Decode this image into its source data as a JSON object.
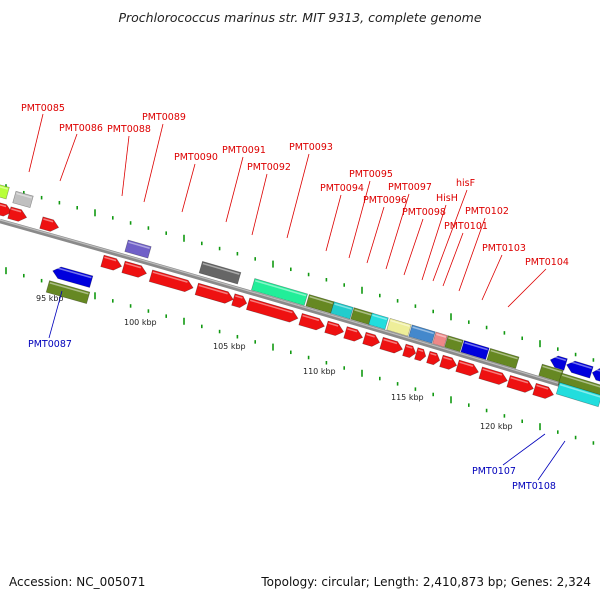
{
  "title": "Prochlorococcus marinus str. MIT 9313, complete genome",
  "footer": {
    "accession": "Accession: NC_005071",
    "summary": "Topology: circular; Length: 2,410,873 bp; Genes: 2,324"
  },
  "colors": {
    "forward_label": "#dd0000",
    "reverse_label": "#0000bb",
    "backbone": "#888888",
    "tick": "#119911"
  },
  "scale_labels": [
    "95 kbp",
    "100 kbp",
    "105 kbp",
    "110 kbp",
    "115 kbp",
    "120 kbp"
  ],
  "forward_labels": [
    "PMT0085",
    "PMT0086",
    "PMT0088",
    "PMT0089",
    "PMT0090",
    "PMT0091",
    "PMT0092",
    "PMT0093",
    "PMT0094",
    "PMT0095",
    "PMT0096",
    "PMT0097",
    "PMT0098",
    "HisH",
    "hisF",
    "PMT0101",
    "PMT0102",
    "PMT0103",
    "PMT0104"
  ],
  "reverse_labels": [
    "PMT0087",
    "PMT0107",
    "PMT0108"
  ]
}
